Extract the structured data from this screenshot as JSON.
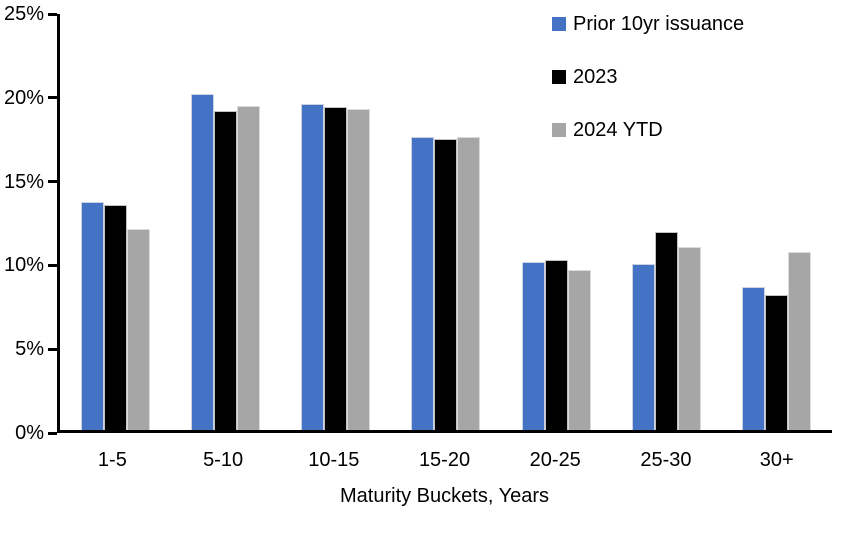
{
  "chart_data": {
    "type": "bar",
    "title": "",
    "xlabel": "Maturity Buckets, Years",
    "ylabel": "",
    "ylim": [
      0,
      25
    ],
    "y_tick_values": [
      0,
      5,
      10,
      15,
      20,
      25
    ],
    "y_tick_labels": [
      "0%",
      "5%",
      "10%",
      "15%",
      "20%",
      "25%"
    ],
    "grid": false,
    "legend_position": "top-right",
    "categories": [
      "1-5",
      "5-10",
      "10-15",
      "15-20",
      "20-25",
      "25-30",
      "30+"
    ],
    "series": [
      {
        "name": "Prior 10yr issuance",
        "color": "#4472C4",
        "values": [
          13.7,
          20.2,
          19.6,
          17.6,
          10.1,
          10.0,
          8.6
        ]
      },
      {
        "name": "2023",
        "color": "#000000",
        "values": [
          13.5,
          19.2,
          19.4,
          17.5,
          10.2,
          11.9,
          8.1
        ]
      },
      {
        "name": "2024 YTD",
        "color": "#A6A6A6",
        "values": [
          12.1,
          19.5,
          19.3,
          17.6,
          9.6,
          11.0,
          10.7
        ]
      }
    ],
    "axis_color": "#000000",
    "background_color": "#FFFFFF"
  }
}
